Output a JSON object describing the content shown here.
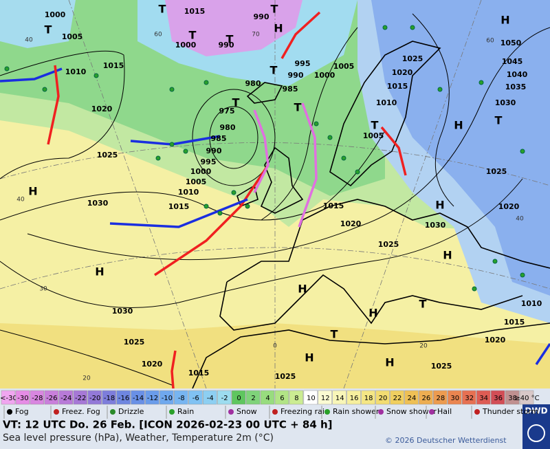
{
  "map": {
    "isobar_labels": [
      1000,
      1015,
      990,
      1005,
      1000,
      990,
      1015,
      1010,
      995,
      1005,
      990,
      1000,
      985,
      1025,
      1020,
      1015,
      1010,
      1005,
      1050,
      1045,
      1040,
      1035,
      1030,
      980,
      975,
      980,
      985,
      990,
      995,
      1000,
      1005,
      1010,
      1015,
      1020,
      1025,
      1030,
      1015,
      1020,
      1025,
      1030,
      1025,
      1020,
      1010,
      1015,
      1030,
      1025,
      1020,
      1015,
      1025,
      1025,
      1020
    ],
    "pressure_centers": [
      "T",
      "T",
      "T",
      "T",
      "H",
      "T",
      "T",
      "T",
      "T",
      "T",
      "T",
      "H",
      "H",
      "H",
      "H",
      "H",
      "H",
      "H",
      "H",
      "H",
      "H",
      "T",
      "T"
    ],
    "temperature_labels": [
      60,
      70,
      60,
      40,
      40,
      30,
      20,
      0,
      20,
      40
    ]
  },
  "legend": {
    "scale": [
      {
        "label": "<-30",
        "color": "#f0a6f0"
      },
      {
        "label": -30,
        "color": "#e58ce5"
      },
      {
        "label": -28,
        "color": "#d886e0"
      },
      {
        "label": -26,
        "color": "#c97fdb"
      },
      {
        "label": -24,
        "color": "#b87ad8"
      },
      {
        "label": -22,
        "color": "#a678d6"
      },
      {
        "label": -20,
        "color": "#9379d8"
      },
      {
        "label": -18,
        "color": "#7d7ddb"
      },
      {
        "label": -16,
        "color": "#6e86e0"
      },
      {
        "label": -14,
        "color": "#6990e6"
      },
      {
        "label": -12,
        "color": "#6a9cea"
      },
      {
        "label": -10,
        "color": "#6fa8ee"
      },
      {
        "label": -8,
        "color": "#77b5f1"
      },
      {
        "label": -6,
        "color": "#80c2f3"
      },
      {
        "label": -4,
        "color": "#8dcff2"
      },
      {
        "label": -2,
        "color": "#9cdcef"
      },
      {
        "label": 0,
        "color": "#5fc65f"
      },
      {
        "label": 2,
        "color": "#7fd37a"
      },
      {
        "label": 4,
        "color": "#98dc7e"
      },
      {
        "label": 6,
        "color": "#b2e486"
      },
      {
        "label": 8,
        "color": "#cbec92"
      },
      {
        "label": 10,
        "color": "#ffffff"
      },
      {
        "label": 12,
        "color": "#fbfbd2"
      },
      {
        "label": 14,
        "color": "#f8f6b8"
      },
      {
        "label": 16,
        "color": "#f6ef9e"
      },
      {
        "label": 18,
        "color": "#f4e685"
      },
      {
        "label": 20,
        "color": "#f2dc72"
      },
      {
        "label": 22,
        "color": "#f0cf60"
      },
      {
        "label": 24,
        "color": "#eec055"
      },
      {
        "label": 26,
        "color": "#edae52"
      },
      {
        "label": 28,
        "color": "#ec9b50"
      },
      {
        "label": 30,
        "color": "#ea8550"
      },
      {
        "label": 32,
        "color": "#e67052"
      },
      {
        "label": 34,
        "color": "#de5c54"
      },
      {
        "label": 36,
        "color": "#d24e56"
      },
      {
        "label": 38,
        "color": "#c09090"
      },
      {
        "label": "≥40 °C",
        "color": "#d8c8c8"
      }
    ],
    "weather": [
      "Fog",
      "Freez. Fog",
      "Drizzle",
      "Rain",
      "Snow",
      "Freezing rain",
      "Rain shower",
      "Snow shower",
      "Hail",
      "Thunder storm"
    ]
  },
  "footer": {
    "valid_time": "VT: 12 UTC Do.  26 Feb. [ICON 2026-02-23  00 UTC + 84 h]",
    "description": "Sea level pressure (hPa), Weather, Temperature 2m (°C)",
    "copyright": "© 2026 Deutscher Wetterdienst",
    "logo": "DWD"
  }
}
